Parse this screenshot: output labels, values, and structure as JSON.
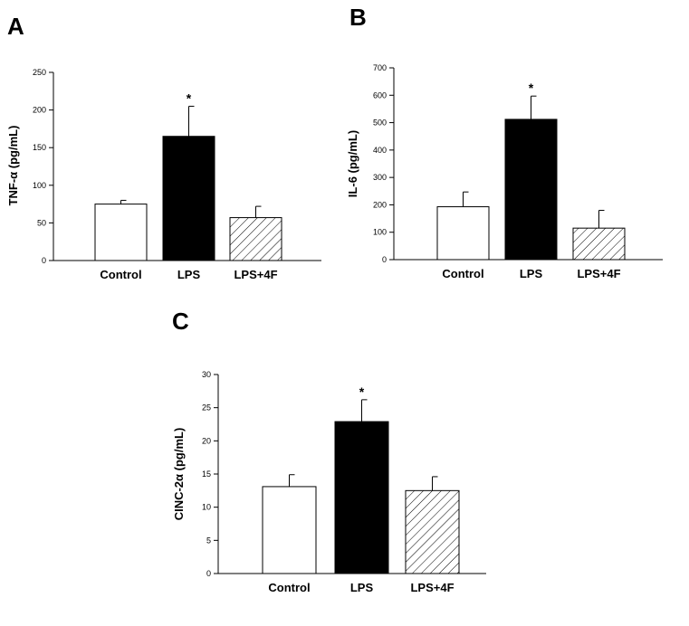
{
  "chart_data": [
    {
      "type": "bar",
      "panel": "A",
      "ylabel": "TNF-α (pg/mL)",
      "categories": [
        "Control",
        "LPS",
        "LPS+4F"
      ],
      "values": [
        75,
        165,
        57
      ],
      "error_upper": [
        80,
        205,
        72
      ],
      "significance": [
        "",
        "*",
        ""
      ],
      "ylim": [
        0,
        250
      ],
      "yticks": [
        0,
        50,
        100,
        150,
        200,
        250
      ],
      "fills": [
        "white",
        "black",
        "hatched"
      ]
    },
    {
      "type": "bar",
      "panel": "B",
      "ylabel": "IL-6 (pg/mL)",
      "categories": [
        "Control",
        "LPS",
        "LPS+4F"
      ],
      "values": [
        193,
        512,
        115
      ],
      "error_upper": [
        247,
        597,
        180
      ],
      "significance": [
        "",
        "*",
        ""
      ],
      "ylim": [
        0,
        700
      ],
      "yticks": [
        0,
        100,
        200,
        300,
        400,
        500,
        600,
        700
      ],
      "fills": [
        "white",
        "black",
        "hatched"
      ]
    },
    {
      "type": "bar",
      "panel": "C",
      "ylabel": "CINC-2α (pg/mL)",
      "categories": [
        "Control",
        "LPS",
        "LPS+4F"
      ],
      "values": [
        13.1,
        22.9,
        12.5
      ],
      "error_upper": [
        14.9,
        26.2,
        14.6
      ],
      "significance": [
        "",
        "*",
        ""
      ],
      "ylim": [
        0,
        30
      ],
      "yticks": [
        0,
        5,
        10,
        15,
        20,
        25,
        30
      ],
      "fills": [
        "white",
        "black",
        "hatched"
      ]
    }
  ]
}
